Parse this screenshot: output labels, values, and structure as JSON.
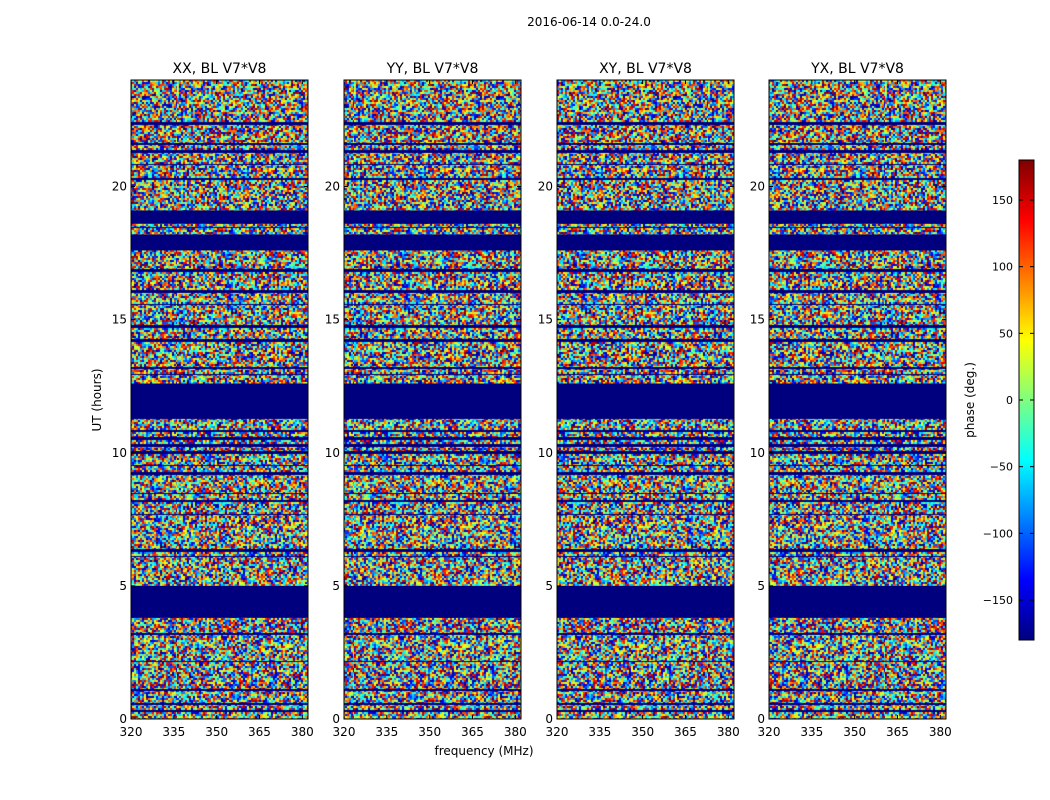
{
  "figure": {
    "suptitle": "2016-06-14 0.0-24.0",
    "xlabel": "frequency (MHz)",
    "ylabel": "UT (hours)"
  },
  "chart_data": {
    "type": "heatmap",
    "x_range": [
      320,
      382
    ],
    "y_range": [
      0,
      24
    ],
    "xticks": [
      320,
      335,
      350,
      365,
      380
    ],
    "xtick_labels": [
      "320",
      "335",
      "350",
      "365",
      "380"
    ],
    "yticks": [
      0,
      5,
      10,
      15,
      20
    ],
    "ytick_labels": [
      "0",
      "5",
      "10",
      "15",
      "20"
    ],
    "panels": [
      {
        "title": "XX, BL V7*V8"
      },
      {
        "title": "YY, BL V7*V8"
      },
      {
        "title": "XY, BL V7*V8"
      },
      {
        "title": "YX, BL V7*V8"
      }
    ],
    "flagged_bands_hours": [
      [
        3.8,
        5.0
      ],
      [
        11.3,
        12.6
      ],
      [
        17.6,
        18.2
      ],
      [
        18.6,
        19.1
      ]
    ],
    "colorbar": {
      "label": "phase (deg.)",
      "range": [
        -180,
        180
      ],
      "ticks": [
        150,
        100,
        50,
        0,
        -50,
        -100,
        -150
      ],
      "tick_labels": [
        "150",
        "100",
        "50",
        "0",
        "−50",
        "−100",
        "−150"
      ],
      "colormap": "jet",
      "colors": [
        "#00007f",
        "#0000ff",
        "#007fff",
        "#00ffff",
        "#7fff7f",
        "#ffff00",
        "#ff7f00",
        "#ff0000",
        "#7f0000"
      ]
    }
  }
}
